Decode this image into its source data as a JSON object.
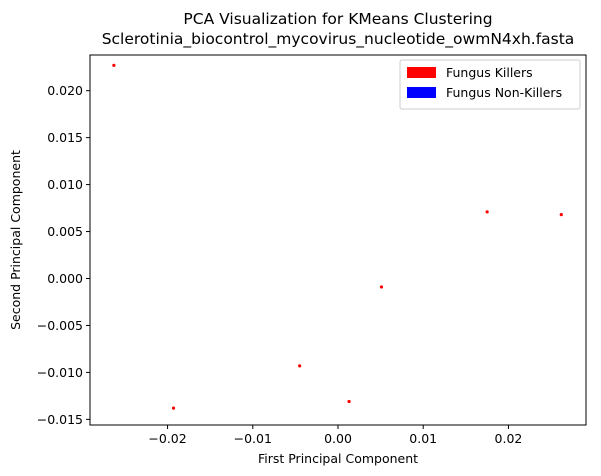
{
  "chart_data": {
    "type": "scatter",
    "title": "PCA Visualization for KMeans Clustering",
    "subtitle": "Sclerotinia_biocontrol_mycovirus_nucleotide_owmN4xh.fasta",
    "xlabel": "First Principal Component",
    "ylabel": "Second Principal Component",
    "xlim": [
      -0.0291,
      0.0291
    ],
    "ylim": [
      -0.0156,
      0.0238
    ],
    "xticks": [
      -0.02,
      -0.01,
      0.0,
      0.01,
      0.02
    ],
    "xtick_labels": [
      "−0.02",
      "−0.01",
      "0.00",
      "0.01",
      "0.02"
    ],
    "yticks": [
      -0.015,
      -0.01,
      -0.005,
      0.0,
      0.005,
      0.01,
      0.015,
      0.02
    ],
    "ytick_labels": [
      "−0.015",
      "−0.010",
      "−0.005",
      "0.000",
      "0.005",
      "0.010",
      "0.015",
      "0.020"
    ],
    "grid": false,
    "legend_position": "top-right",
    "legend": [
      {
        "label": "Fungus Killers",
        "color": "#ff0000"
      },
      {
        "label": "Fungus Non-Killers",
        "color": "#0000ff"
      }
    ],
    "series": [
      {
        "color": "#ff0000",
        "points": [
          {
            "x": -0.0263,
            "y": 0.0227
          },
          {
            "x": -0.0193,
            "y": -0.0138
          },
          {
            "x": -0.0045,
            "y": -0.0093
          },
          {
            "x": 0.0013,
            "y": -0.0131
          },
          {
            "x": 0.0051,
            "y": -0.0009
          },
          {
            "x": 0.0175,
            "y": 0.0071
          },
          {
            "x": 0.0262,
            "y": 0.0068
          }
        ]
      }
    ]
  }
}
